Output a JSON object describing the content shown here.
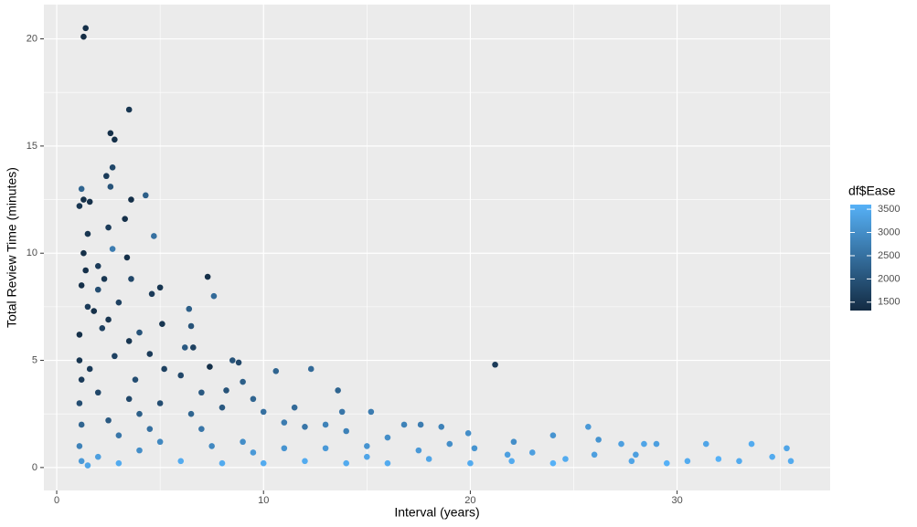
{
  "chart_data": {
    "type": "scatter",
    "xlabel": "Interval (years)",
    "ylabel": "Total Review Time (minutes)",
    "xlim": [
      -0.62,
      37.4
    ],
    "ylim": [
      -1.07,
      21.6
    ],
    "xticks": [
      0,
      10,
      20,
      30
    ],
    "yticks": [
      0,
      5,
      10,
      15,
      20
    ],
    "x_minor_ticks": [
      5,
      15,
      25,
      35
    ],
    "y_minor_ticks": [
      2.5,
      7.5,
      12.5,
      17.5
    ],
    "grid": true,
    "color_scale": {
      "title": "df$Ease",
      "lim": [
        1320,
        3600
      ],
      "ticks": [
        1500,
        2000,
        2500,
        3000,
        3500
      ],
      "low": "#132B43",
      "high": "#56B1F7"
    },
    "x": [
      1.4,
      1.3,
      3.5,
      2.6,
      2.8,
      2.7,
      2.4,
      2.6,
      1.2,
      1.3,
      1.6,
      3.6,
      4.3,
      1.1,
      2.5,
      3.3,
      4.7,
      1.5,
      2.7,
      1.3,
      3.4,
      7.3,
      7.6,
      4.6,
      5,
      3.6,
      6.4,
      1.2,
      2,
      3,
      5.1,
      6.5,
      1.5,
      2.2,
      4,
      6.2,
      6.6,
      8.5,
      8.8,
      7.4,
      10.6,
      12.3,
      13.6,
      21.2,
      9,
      11.5,
      13.8,
      15.2,
      16.8,
      17.6,
      18.6,
      19.9,
      22.1,
      24,
      25.7,
      26.2,
      27.3,
      28.4,
      29,
      31.4,
      33.6,
      35.3,
      35.5,
      34.6,
      32,
      30.5,
      29.5,
      27.8,
      26,
      24.6,
      23,
      21.8,
      20.2,
      19,
      17.5,
      16,
      15,
      14,
      13,
      12,
      11,
      10,
      9.5,
      8.2,
      7,
      6,
      5.2,
      4.5,
      3.5,
      2.5,
      1.8,
      1.1,
      1.1,
      1.2,
      1.1,
      1.2,
      1.1,
      1.2,
      1.5,
      2,
      3,
      3,
      4,
      4,
      5,
      5,
      6,
      7,
      8,
      8,
      9,
      10,
      11,
      12,
      13,
      14,
      15,
      16,
      18,
      20,
      22,
      24,
      28,
      33,
      2,
      2.5,
      3.5,
      1.6,
      1.4,
      2,
      2.3,
      2.8,
      3.8,
      4.5,
      6.5,
      7.5,
      9.5
    ],
    "values": [
      20.5,
      20.1,
      16.7,
      15.6,
      15.3,
      14,
      13.6,
      13.1,
      13,
      12.5,
      12.4,
      12.5,
      12.7,
      12.2,
      11.2,
      11.6,
      10.8,
      10.9,
      10.2,
      10,
      9.8,
      8.9,
      8,
      8.1,
      8.4,
      8.8,
      7.4,
      8.5,
      8.3,
      7.7,
      6.7,
      6.6,
      7.5,
      6.5,
      6.3,
      5.6,
      5.6,
      5,
      4.9,
      4.7,
      4.5,
      4.6,
      3.6,
      4.8,
      4,
      2.8,
      2.6,
      2.6,
      2,
      2,
      1.9,
      1.6,
      1.2,
      1.5,
      1.9,
      1.3,
      1.1,
      1.1,
      1.1,
      1.1,
      1.1,
      0.9,
      0.3,
      0.5,
      0.4,
      0.3,
      0.2,
      0.3,
      0.6,
      0.4,
      0.7,
      0.6,
      0.9,
      1.1,
      0.8,
      1.4,
      1,
      1.7,
      2,
      1.9,
      2.1,
      2.6,
      3.2,
      3.6,
      3.5,
      4.3,
      4.6,
      5.3,
      5.9,
      6.9,
      7.3,
      6.2,
      5,
      4.1,
      3,
      2,
      1,
      0.3,
      0.1,
      0.5,
      1.5,
      0.2,
      2.5,
      0.8,
      3,
      1.2,
      0.3,
      1.8,
      0.2,
      2.8,
      1.2,
      0.2,
      0.9,
      0.3,
      0.9,
      0.2,
      0.5,
      0.2,
      0.4,
      0.2,
      0.3,
      0.2,
      0.6,
      0.3,
      3.5,
      2.2,
      3.2,
      4.6,
      9.2,
      9.4,
      8.8,
      5.2,
      4.1,
      1.8,
      2.5,
      1,
      0.7
    ],
    "ease": [
      1400,
      1350,
      1500,
      1400,
      1400,
      1800,
      1600,
      2000,
      2300,
      1400,
      1400,
      1400,
      2200,
      1500,
      1600,
      1400,
      2500,
      1500,
      2700,
      1400,
      1400,
      1400,
      2400,
      1600,
      1500,
      1800,
      2200,
      1400,
      1900,
      1700,
      1500,
      2000,
      1600,
      1700,
      2000,
      2100,
      1700,
      2000,
      1800,
      1400,
      2300,
      2400,
      2300,
      1600,
      2200,
      2400,
      2600,
      2700,
      2800,
      2700,
      2800,
      3000,
      3000,
      3100,
      3200,
      3100,
      3300,
      3400,
      3300,
      3400,
      3500,
      3400,
      3500,
      3500,
      3600,
      3500,
      3600,
      3400,
      3300,
      3500,
      3300,
      3300,
      3100,
      3000,
      3200,
      3000,
      3100,
      2800,
      2800,
      2600,
      2700,
      2500,
      2300,
      2000,
      2100,
      1800,
      1700,
      1600,
      1500,
      1500,
      1400,
      1400,
      1500,
      1600,
      1900,
      2300,
      2800,
      3200,
      3400,
      3300,
      2600,
      3500,
      2200,
      3000,
      1900,
      2900,
      3500,
      2600,
      3500,
      2100,
      3000,
      3500,
      3100,
      3500,
      3200,
      3500,
      3400,
      3500,
      3400,
      3500,
      3500,
      3600,
      3300,
      3500,
      1800,
      2100,
      1800,
      1600,
      1400,
      1600,
      1500,
      1700,
      1900,
      2500,
      2300,
      2900,
      3200
    ]
  }
}
